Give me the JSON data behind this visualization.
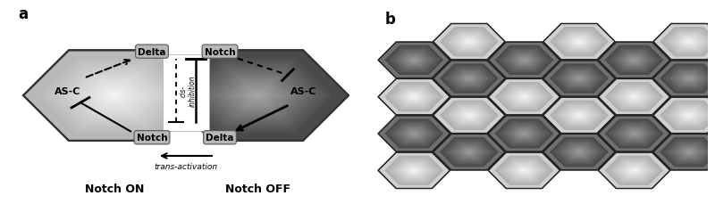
{
  "panel_a_label": "a",
  "panel_b_label": "b",
  "notch_on_label": "Notch ON",
  "notch_off_label": "Notch OFF",
  "trans_activation_label": "trans-activation",
  "delta_label": "Delta",
  "notch_label": "Notch",
  "asc_label": "AS-C",
  "cis_label": "cis-\ninhibition",
  "label_box_color": "#b0b0b0",
  "bg_color": "#ffffff",
  "hex_edge_color": "#333333"
}
